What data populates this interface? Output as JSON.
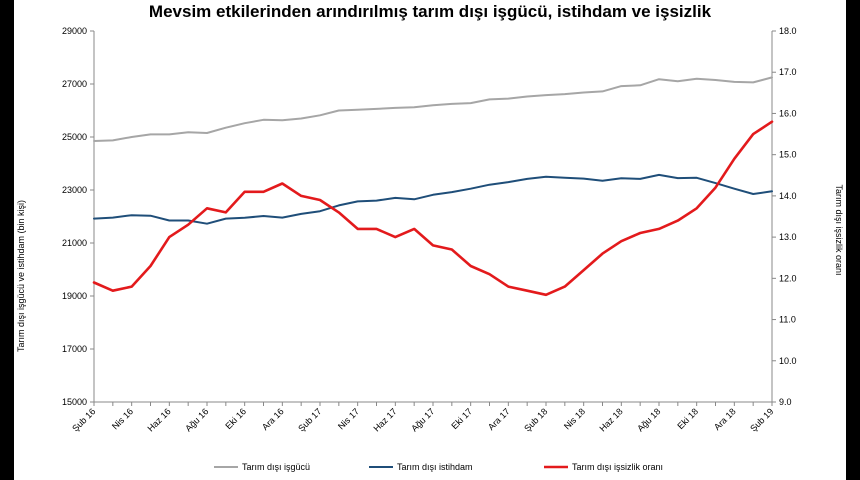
{
  "chart_data": {
    "type": "line",
    "title": "Mevsim etkilerinden arındırılmış tarım dışı işgücü, istihdam ve işsizlik",
    "ylabel_left": "Tarım dışı işgücü ve istihdam (bin kişi)",
    "ylabel_right": "Tarım dışı işsizlik oranı",
    "ylim_left": [
      15000,
      29000
    ],
    "yticks_left": [
      "15000",
      "17000",
      "19000",
      "21000",
      "23000",
      "25000",
      "27000",
      "29000"
    ],
    "ylim_right": [
      9.0,
      18.0
    ],
    "yticks_right": [
      "9.0",
      "10.0",
      "11.0",
      "12.0",
      "13.0",
      "14.0",
      "15.0",
      "16.0",
      "17.0",
      "18.0"
    ],
    "x": [
      "Şub 16",
      "Mar 16",
      "Nis 16",
      "May 16",
      "Haz 16",
      "Tem 16",
      "Ağu 16",
      "Eyl 16",
      "Eki 16",
      "Kas 16",
      "Ara 16",
      "Oca 17",
      "Şub 17",
      "Mar 17",
      "Nis 17",
      "May 17",
      "Haz 17",
      "Tem 17",
      "Ağu 17",
      "Eyl 17",
      "Eki 17",
      "Kas 17",
      "Ara 17",
      "Oca 18",
      "Şub 18",
      "Mar 18",
      "Nis 18",
      "May 18",
      "Haz 18",
      "Tem 18",
      "Ağu 18",
      "Eyl 18",
      "Eki 18",
      "Kas 18",
      "Ara 18",
      "Oca 19",
      "Şub 19"
    ],
    "xticks": [
      "Şub 16",
      "Nis 16",
      "Haz 16",
      "Ağu 16",
      "Eki 16",
      "Ara 16",
      "Şub 17",
      "Nis 17",
      "Haz 17",
      "Ağu 17",
      "Eki 17",
      "Ara 17",
      "Şub 18",
      "Nis 18",
      "Haz 18",
      "Ağu 18",
      "Eki 18",
      "Ara 18",
      "Şub 19"
    ],
    "series": [
      {
        "name": "Tarım dışı işgücü",
        "axis": "left",
        "color": "#a6a6a6",
        "values": [
          24850,
          24870,
          25000,
          25100,
          25100,
          25180,
          25150,
          25350,
          25520,
          25650,
          25630,
          25700,
          25820,
          26000,
          26030,
          26060,
          26100,
          26120,
          26200,
          26250,
          26280,
          26420,
          26450,
          26530,
          26580,
          26620,
          26680,
          26720,
          26920,
          26950,
          27180,
          27100,
          27200,
          27150,
          27080,
          27060,
          27250
        ]
      },
      {
        "name": "Tarım dışı istihdam",
        "axis": "left",
        "color": "#1f4e79",
        "values": [
          21920,
          21960,
          22050,
          22030,
          21850,
          21850,
          21730,
          21920,
          21950,
          22020,
          21960,
          22100,
          22200,
          22420,
          22570,
          22600,
          22700,
          22650,
          22820,
          22920,
          23050,
          23200,
          23300,
          23420,
          23500,
          23460,
          23430,
          23350,
          23440,
          23420,
          23570,
          23450,
          23460,
          23260,
          23050,
          22850,
          22950
        ]
      },
      {
        "name": "Tarım dışı işsizlik oranı",
        "axis": "right",
        "color": "#e31a1c",
        "values": [
          11.9,
          11.7,
          11.8,
          12.3,
          13.0,
          13.3,
          13.7,
          13.6,
          14.1,
          14.1,
          14.3,
          14.0,
          13.9,
          13.6,
          13.2,
          13.2,
          13.0,
          13.2,
          12.8,
          12.7,
          12.3,
          12.1,
          11.8,
          11.7,
          11.6,
          11.8,
          12.2,
          12.6,
          12.9,
          13.1,
          13.2,
          13.4,
          13.7,
          14.2,
          14.9,
          15.5,
          15.8
        ]
      }
    ]
  }
}
